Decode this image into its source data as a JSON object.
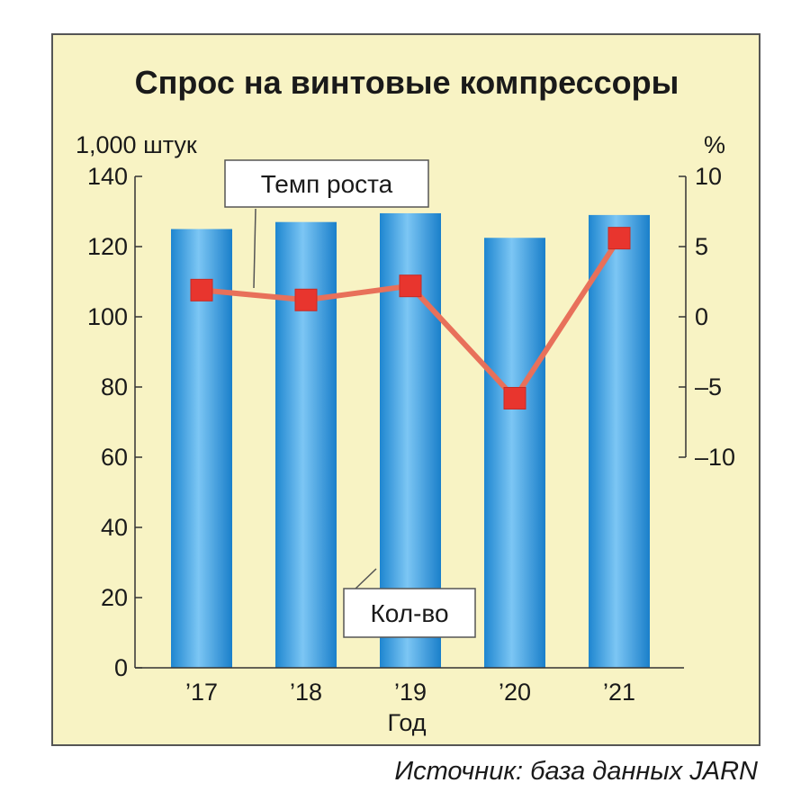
{
  "colors": {
    "panel_bg": "#f8f3c4",
    "bar_fill": "#2f9be0",
    "line": "#e8705a",
    "marker": "#e8352e",
    "text": "#1a1a1a"
  },
  "source": "Источник: база данных JARN",
  "chart_data": {
    "type": "bar",
    "title": "Спрос на винтовые компрессоры",
    "xlabel": "Год",
    "categories": [
      "’17",
      "’18",
      "’19",
      "’20",
      "’21"
    ],
    "left_axis": {
      "unit": "1,000 штук",
      "ylim": [
        0,
        140
      ],
      "ticks": [
        "0",
        "20",
        "40",
        "60",
        "80",
        "100",
        "120",
        "140"
      ]
    },
    "right_axis": {
      "unit": "%",
      "ylim": [
        -10,
        10
      ],
      "ticks": [
        "10",
        "5",
        "0",
        "–5",
        "–10"
      ]
    },
    "series": [
      {
        "name": "Кол-во",
        "type": "bar",
        "axis": "left",
        "values": [
          125,
          127,
          129.5,
          122.5,
          129
        ]
      },
      {
        "name": "Темп роста",
        "type": "line",
        "axis": "right",
        "values": [
          1.9,
          1.2,
          2.2,
          -5.8,
          5.6
        ]
      }
    ],
    "grid": false,
    "legend": "callouts"
  }
}
